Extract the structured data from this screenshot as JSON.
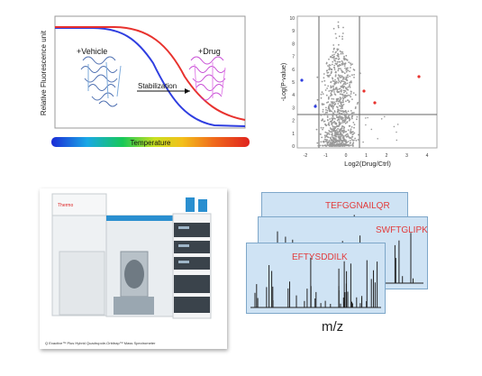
{
  "tpp": {
    "ylabel": "Relative Fluorescence unit",
    "xlabel": "Temperature",
    "vehicle": "+Vehicle",
    "drug": "+Drug",
    "arrow": "Stabilization",
    "colors": {
      "vehicle": "#2f3ee0",
      "drug": "#e8322e"
    }
  },
  "volcano": {
    "xlabel": "Log2(Drug/Ctrl)",
    "ylabel": "-Log(P-value)",
    "xticks": [
      "-2",
      "-1",
      "0",
      "1",
      "2",
      "3",
      "4"
    ],
    "yticks": [
      "0",
      "1",
      "2",
      "3",
      "4",
      "5",
      "6",
      "7",
      "8",
      "9",
      "10"
    ]
  },
  "instrument": {
    "brand": "Thermo",
    "caption": "Q Exactive™ Plus Hybrid Quadrupole-Orbitrap™ Mass Spectrometer"
  },
  "spectra": {
    "peptides": [
      "TEFGGNAILQR",
      "SWFTGLIPK",
      "EFTYSDDILK"
    ],
    "xlabel": "m/z"
  }
}
